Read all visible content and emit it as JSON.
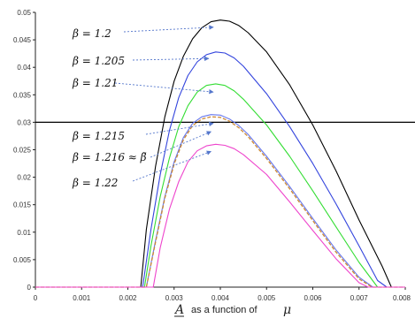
{
  "chart_data": {
    "type": "line",
    "xlabel_parts": [
      "A",
      "as a function of",
      "μ"
    ],
    "xlim": [
      0,
      0.008
    ],
    "ylim": [
      0,
      0.05
    ],
    "x_ticks": [
      "0",
      "0.001",
      "0.002",
      "0.003",
      "0.004",
      "0.005",
      "0.006",
      "0.007",
      "0.008"
    ],
    "y_ticks": [
      "0",
      "0.005",
      "0.01",
      "0.015",
      "0.02",
      "0.025",
      "0.03",
      "0.035",
      "0.04",
      "0.045",
      "0.05"
    ],
    "reference_line": {
      "y": 0.03,
      "color": "#000000"
    },
    "grid": false,
    "series": [
      {
        "name": "β = 1.2",
        "color": "#000000",
        "dashed": false,
        "x": [
          0,
          0.00228,
          0.0024,
          0.0026,
          0.0028,
          0.003,
          0.0032,
          0.0034,
          0.0036,
          0.0038,
          0.004,
          0.0042,
          0.0044,
          0.0046,
          0.005,
          0.0055,
          0.006,
          0.0065,
          0.007,
          0.0075,
          0.0077,
          0.008
        ],
        "y": [
          0,
          0,
          0.0105,
          0.022,
          0.031,
          0.0375,
          0.042,
          0.0452,
          0.0472,
          0.0483,
          0.0486,
          0.0484,
          0.0476,
          0.0463,
          0.0428,
          0.0368,
          0.0295,
          0.0212,
          0.0122,
          0.0038,
          0,
          0
        ]
      },
      {
        "name": "β = 1.205",
        "color": "#3344dd",
        "dashed": false,
        "x": [
          0,
          0.00232,
          0.0025,
          0.0027,
          0.0029,
          0.0031,
          0.0033,
          0.0035,
          0.0037,
          0.0039,
          0.0041,
          0.0043,
          0.0045,
          0.005,
          0.0055,
          0.006,
          0.0065,
          0.007,
          0.0074,
          0.0076,
          0.008
        ],
        "y": [
          0,
          0,
          0.0105,
          0.0205,
          0.0285,
          0.0345,
          0.0385,
          0.041,
          0.0423,
          0.0428,
          0.0426,
          0.0417,
          0.0402,
          0.0352,
          0.0292,
          0.0225,
          0.0152,
          0.0075,
          0.0012,
          0,
          0
        ]
      },
      {
        "name": "β = 1.21",
        "color": "#33dd33",
        "dashed": false,
        "x": [
          0,
          0.00236,
          0.0025,
          0.0027,
          0.0029,
          0.0031,
          0.0033,
          0.0035,
          0.0037,
          0.0039,
          0.0041,
          0.0043,
          0.0045,
          0.005,
          0.0055,
          0.006,
          0.0065,
          0.007,
          0.0074,
          0.008
        ],
        "y": [
          0,
          0,
          0.0075,
          0.0165,
          0.0235,
          0.0292,
          0.033,
          0.0355,
          0.0367,
          0.037,
          0.0367,
          0.0357,
          0.0342,
          0.0295,
          0.0238,
          0.0175,
          0.011,
          0.0045,
          0,
          0
        ]
      },
      {
        "name": "β = 1.215",
        "color": "#6677ee",
        "dashed": false,
        "x": [
          0,
          0.0024,
          0.0026,
          0.0028,
          0.003,
          0.0032,
          0.0034,
          0.0036,
          0.0038,
          0.004,
          0.0042,
          0.0044,
          0.0046,
          0.005,
          0.0055,
          0.006,
          0.0065,
          0.007,
          0.0073,
          0.008
        ],
        "y": [
          0,
          0,
          0.0085,
          0.0165,
          0.0228,
          0.0272,
          0.0298,
          0.031,
          0.0314,
          0.0313,
          0.0306,
          0.0294,
          0.0278,
          0.0238,
          0.0183,
          0.0125,
          0.0068,
          0.0018,
          0,
          0
        ]
      },
      {
        "name": "β = 1.216 ≈ β̃",
        "color": "#cc8833",
        "dashed": true,
        "x": [
          0,
          0.0024,
          0.0026,
          0.0028,
          0.003,
          0.0032,
          0.0034,
          0.0036,
          0.0038,
          0.004,
          0.0042,
          0.0044,
          0.0046,
          0.005,
          0.0055,
          0.006,
          0.0065,
          0.007,
          0.00728,
          0.008
        ],
        "y": [
          0,
          0,
          0.0082,
          0.0162,
          0.0224,
          0.0268,
          0.0294,
          0.0306,
          0.031,
          0.0309,
          0.0302,
          0.029,
          0.0274,
          0.0234,
          0.0179,
          0.0121,
          0.0064,
          0.0015,
          0,
          0
        ]
      },
      {
        "name": "β = 1.22",
        "color": "#ee44cc",
        "dashed": false,
        "x": [
          0,
          0.00255,
          0.0027,
          0.0029,
          0.0031,
          0.0033,
          0.0035,
          0.0037,
          0.0039,
          0.0041,
          0.0043,
          0.0045,
          0.005,
          0.0055,
          0.006,
          0.0065,
          0.007,
          0.0072,
          0.008
        ],
        "y": [
          0,
          0,
          0.0072,
          0.0142,
          0.0192,
          0.0228,
          0.0248,
          0.0257,
          0.026,
          0.0258,
          0.0252,
          0.0241,
          0.0205,
          0.0155,
          0.0103,
          0.0052,
          0.0008,
          0,
          0
        ]
      }
    ],
    "annotations": [
      {
        "text": "β = 1.2",
        "series": 0,
        "arrow_to": [
          0.00385,
          0.0473
        ]
      },
      {
        "text": "β = 1.205",
        "series": 1,
        "arrow_to": [
          0.00375,
          0.0416
        ]
      },
      {
        "text": "β = 1.21",
        "series": 2,
        "arrow_to": [
          0.00385,
          0.0355
        ]
      },
      {
        "text": "β = 1.215",
        "series": 3,
        "arrow_to": [
          0.00385,
          0.0298
        ]
      },
      {
        "text": "β = 1.216 ≈ β̃",
        "series": 4,
        "arrow_to": [
          0.0038,
          0.0283
        ]
      },
      {
        "text": "β = 1.22",
        "series": 5,
        "arrow_to": [
          0.0038,
          0.0247
        ]
      }
    ]
  }
}
